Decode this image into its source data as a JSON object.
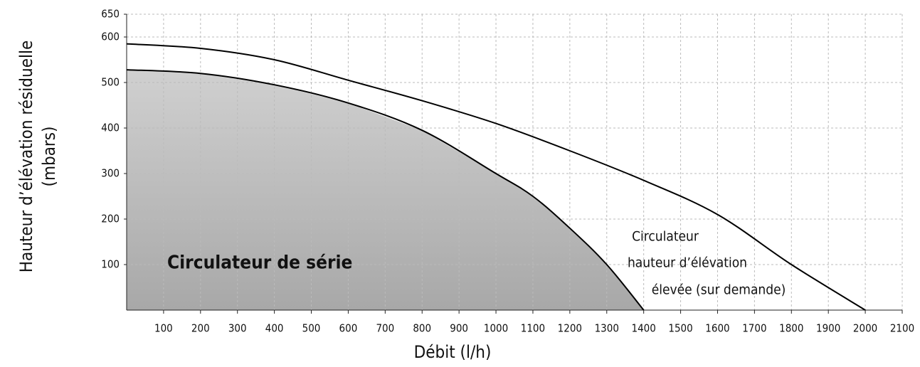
{
  "chart_data": {
    "type": "area-line",
    "xlabel": "Débit (l/h)",
    "ylabel": [
      "Hauteur d’élévation résiduelle",
      "(mbars)"
    ],
    "xlim": [
      0,
      2100
    ],
    "xticks": [
      100,
      200,
      300,
      400,
      500,
      600,
      700,
      800,
      900,
      1000,
      1100,
      1200,
      1300,
      1400,
      1500,
      1600,
      1700,
      1800,
      1900,
      2000,
      2100
    ],
    "ylim": [
      0,
      650
    ],
    "yticks": [
      100,
      200,
      300,
      400,
      500,
      600,
      650
    ],
    "grid": true,
    "series": [
      {
        "label": [
          "Circulateur de série"
        ],
        "color": "#000000",
        "fill": "#b8b8b8",
        "x": [
          0,
          200,
          400,
          600,
          800,
          1000,
          1100,
          1200,
          1300,
          1400
        ],
        "values": [
          528,
          520,
          495,
          455,
          395,
          300,
          250,
          180,
          100,
          0
        ]
      },
      {
        "label": [
          "Circulateur",
          "hauteur d’élévation",
          "élevée (sur demande)"
        ],
        "color": "#000000",
        "x": [
          0,
          200,
          400,
          600,
          800,
          1000,
          1200,
          1400,
          1600,
          1800,
          2000
        ],
        "values": [
          585,
          575,
          550,
          505,
          460,
          410,
          350,
          285,
          210,
          100,
          0
        ]
      }
    ]
  }
}
